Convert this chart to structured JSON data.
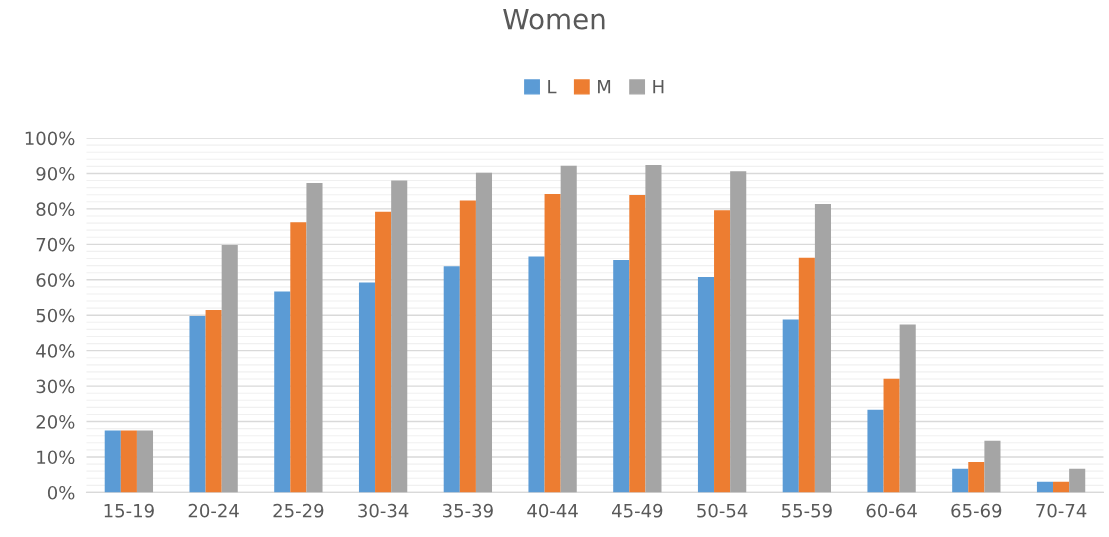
{
  "chart_data": {
    "type": "bar",
    "title": "Women",
    "categories": [
      "15-19",
      "20-24",
      "25-29",
      "30-34",
      "35-39",
      "40-44",
      "45-49",
      "50-54",
      "55-59",
      "60-64",
      "65-69",
      "70-74"
    ],
    "series": [
      {
        "name": "L",
        "color": "#5b9bd5",
        "values": [
          17.5,
          49.8,
          56.7,
          59.2,
          63.8,
          66.6,
          65.6,
          60.8,
          48.8,
          23.3,
          6.7,
          3.0
        ]
      },
      {
        "name": "M",
        "color": "#ed7d31",
        "values": [
          17.5,
          51.5,
          76.2,
          79.2,
          82.4,
          84.2,
          83.9,
          79.6,
          66.2,
          32.1,
          8.6,
          3.0
        ]
      },
      {
        "name": "H",
        "color": "#a5a5a5",
        "values": [
          17.5,
          69.8,
          87.3,
          88.0,
          90.2,
          92.2,
          92.4,
          90.6,
          81.4,
          47.4,
          14.6,
          6.7
        ]
      }
    ],
    "ylim": [
      0,
      100
    ],
    "yticks": [
      {
        "value": 0,
        "label": "0%"
      },
      {
        "value": 10,
        "label": "10%"
      },
      {
        "value": 20,
        "label": "20%"
      },
      {
        "value": 30,
        "label": "30%"
      },
      {
        "value": 40,
        "label": "40%"
      },
      {
        "value": 50,
        "label": "50%"
      },
      {
        "value": 60,
        "label": "60%"
      },
      {
        "value": 70,
        "label": "70%"
      },
      {
        "value": 80,
        "label": "80%"
      },
      {
        "value": 90,
        "label": "90%"
      },
      {
        "value": 100,
        "label": "100%"
      }
    ],
    "grid": "y",
    "legend": "top"
  }
}
